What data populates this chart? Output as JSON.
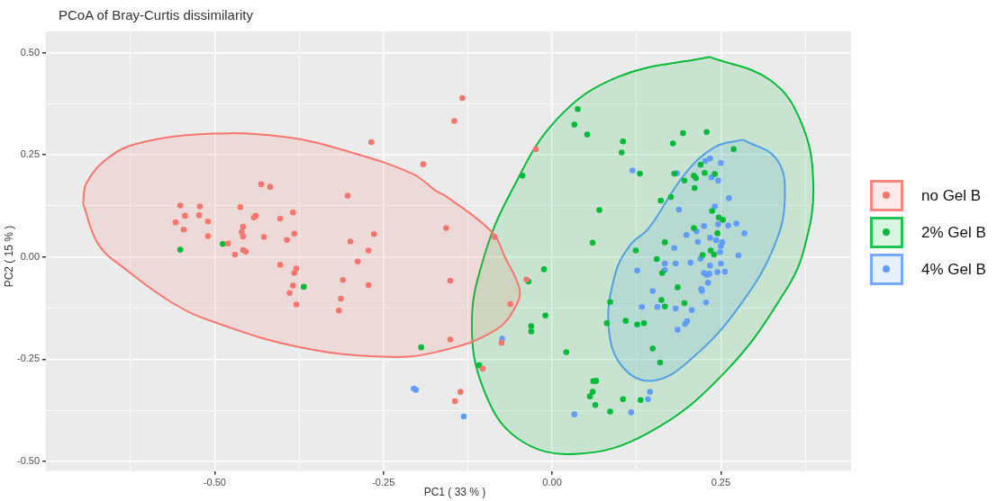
{
  "chart_data": {
    "type": "scatter",
    "title": "PCoA of Bray-Curtis dissimilarity",
    "xlabel": "PC1 ( 33 % )",
    "ylabel": "PC2 ( 15 % )",
    "xlim": [
      -0.75,
      0.443
    ],
    "ylim": [
      -0.524,
      0.552
    ],
    "xticks": [
      {
        "value": -0.625,
        "label": null
      },
      {
        "value": -0.5,
        "label": "-0.50"
      },
      {
        "value": -0.375,
        "label": null
      },
      {
        "value": -0.25,
        "label": "-0.25"
      },
      {
        "value": -0.125,
        "label": null
      },
      {
        "value": 0,
        "label": "0.00"
      },
      {
        "value": 0.125,
        "label": null
      },
      {
        "value": 0.25,
        "label": "0.25"
      },
      {
        "value": 0.375,
        "label": null
      }
    ],
    "yticks": [
      {
        "value": -0.5,
        "label": "-0.50"
      },
      {
        "value": -0.375,
        "label": null
      },
      {
        "value": -0.25,
        "label": "-0.25"
      },
      {
        "value": -0.125,
        "label": null
      },
      {
        "value": 0,
        "label": "0.00"
      },
      {
        "value": 0.125,
        "label": null
      },
      {
        "value": 0.25,
        "label": "0.25"
      },
      {
        "value": 0.375,
        "label": null
      },
      {
        "value": 0.5,
        "label": "0.50"
      }
    ],
    "grid": true,
    "legend": "right",
    "marker": "circle",
    "series": [
      {
        "type": "area",
        "marker": "none",
        "color": "#f8766d",
        "x": [
          -0.695,
          -0.69,
          -0.659,
          -0.614,
          -0.501,
          -0.388,
          -0.298,
          -0.207,
          -0.173,
          -0.153,
          -0.088,
          -0.07,
          -0.049,
          -0.051,
          -0.083,
          -0.173,
          -0.252,
          -0.379,
          -0.501,
          -0.56,
          -0.632,
          -0.672,
          -0.695
        ],
        "values": [
          0.13,
          0.181,
          0.241,
          0.278,
          0.302,
          0.292,
          0.256,
          0.204,
          0.163,
          0.144,
          0.059,
          0.0,
          -0.074,
          -0.111,
          -0.178,
          -0.233,
          -0.244,
          -0.219,
          -0.159,
          -0.115,
          -0.03,
          0.03,
          0.13
        ]
      },
      {
        "type": "area",
        "marker": "none",
        "color": "#00ba38",
        "x": [
          0.233,
          0.323,
          0.369,
          0.387,
          0.375,
          0.346,
          0.256,
          0.143,
          0.034,
          -0.051,
          -0.101,
          -0.119,
          -0.101,
          -0.061,
          0.007,
          0.098,
          0.233
        ],
        "values": [
          0.49,
          0.433,
          0.33,
          0.181,
          0.03,
          -0.082,
          -0.282,
          -0.43,
          -0.482,
          -0.444,
          -0.326,
          -0.163,
          0.0,
          0.159,
          0.337,
          0.441,
          0.49
        ]
      },
      {
        "type": "area",
        "marker": "none",
        "color": "#619cff",
        "x": [
          0.283,
          0.332,
          0.345,
          0.33,
          0.278,
          0.21,
          0.152,
          0.107,
          0.084,
          0.093,
          0.116,
          0.143,
          0.197,
          0.242,
          0.283
        ],
        "values": [
          0.287,
          0.241,
          0.152,
          0.03,
          -0.119,
          -0.244,
          -0.302,
          -0.274,
          -0.178,
          -0.044,
          0.03,
          0.07,
          0.204,
          0.27,
          0.287
        ]
      },
      {
        "name": "no Gel B",
        "color": "#f8766d",
        "x": [
          -0.268,
          -0.191,
          -0.431,
          -0.418,
          -0.303,
          -0.551,
          -0.522,
          -0.462,
          -0.544,
          -0.523,
          -0.51,
          -0.558,
          -0.439,
          -0.442,
          -0.384,
          -0.403,
          -0.458,
          -0.546,
          -0.46,
          -0.458,
          -0.51,
          -0.427,
          -0.382,
          -0.393,
          -0.264,
          -0.299,
          -0.157,
          -0.48,
          -0.272,
          -0.458,
          -0.454,
          -0.47,
          -0.403,
          -0.379,
          -0.382,
          -0.288,
          -0.31,
          -0.272,
          -0.384,
          -0.389,
          -0.313,
          -0.379,
          -0.316,
          -0.151,
          -0.151,
          -0.133,
          -0.145,
          -0.024,
          -0.085,
          -0.038,
          -0.062,
          -0.075,
          -0.103,
          -0.136,
          -0.144
        ],
        "values": [
          0.281,
          0.227,
          0.178,
          0.172,
          0.15,
          0.126,
          0.124,
          0.122,
          0.101,
          0.102,
          0.087,
          0.085,
          0.101,
          0.097,
          0.109,
          0.094,
          0.074,
          0.067,
          0.061,
          0.05,
          0.051,
          0.049,
          0.057,
          0.042,
          0.056,
          0.038,
          0.071,
          0.033,
          0.016,
          0.017,
          0.013,
          0.006,
          -0.019,
          -0.028,
          -0.039,
          -0.011,
          -0.056,
          -0.069,
          -0.07,
          -0.088,
          -0.102,
          -0.116,
          -0.131,
          -0.058,
          -0.202,
          0.389,
          0.333,
          0.264,
          0.049,
          -0.055,
          -0.115,
          -0.21,
          -0.273,
          -0.33,
          -0.353
        ]
      },
      {
        "name": "2% Gel B",
        "color": "#00ba38",
        "x": [
          -0.551,
          -0.488,
          -0.368,
          -0.194,
          0.038,
          0.033,
          0.052,
          0.105,
          0.103,
          0.194,
          0.229,
          0.179,
          0.269,
          -0.044,
          0.13,
          0.181,
          0.22,
          0.226,
          0.241,
          0.21,
          0.213,
          0.196,
          0.211,
          0.161,
          0.176,
          0.07,
          0.237,
          0.247,
          0.253,
          0.21,
          0.245,
          0.06,
          0.167,
          0.124,
          0.235,
          0.24,
          0.223,
          0.155,
          -0.012,
          -0.035,
          -0.01,
          -0.031,
          -0.031,
          0.021,
          -0.108,
          0.086,
          0.081,
          0.109,
          0.126,
          0.136,
          0.163,
          0.186,
          0.162,
          0.167,
          0.196,
          0.149,
          0.16,
          0.061,
          0.065,
          0.06,
          0.056,
          0.064,
          0.086,
          0.105,
          0.131
        ],
        "values": [
          0.018,
          0.032,
          -0.073,
          -0.221,
          0.362,
          0.324,
          0.3,
          0.283,
          0.256,
          0.303,
          0.306,
          0.278,
          0.264,
          0.199,
          0.204,
          0.204,
          0.226,
          0.206,
          0.203,
          0.199,
          0.193,
          0.187,
          0.169,
          0.138,
          0.147,
          0.115,
          0.113,
          0.097,
          0.091,
          0.071,
          0.058,
          0.035,
          0.036,
          0.016,
          0.016,
          0.006,
          0.005,
          -0.005,
          -0.03,
          -0.06,
          -0.143,
          -0.169,
          -0.182,
          -0.233,
          -0.265,
          -0.11,
          -0.162,
          -0.156,
          -0.165,
          -0.162,
          -0.039,
          -0.074,
          -0.105,
          -0.121,
          -0.113,
          -0.224,
          -0.258,
          -0.304,
          -0.303,
          -0.33,
          -0.341,
          -0.362,
          -0.378,
          -0.348,
          -0.35
        ]
      },
      {
        "name": "4% Gel B",
        "color": "#619cff",
        "x": [
          -0.205,
          -0.202,
          0.119,
          0.227,
          0.234,
          0.25,
          0.236,
          0.246,
          0.185,
          0.262,
          0.241,
          0.188,
          0.246,
          0.261,
          0.273,
          0.225,
          0.214,
          0.285,
          0.199,
          0.216,
          0.234,
          0.243,
          0.252,
          0.25,
          0.181,
          0.249,
          0.276,
          0.167,
          0.183,
          0.205,
          0.22,
          0.234,
          0.25,
          0.245,
          0.256,
          0.225,
          0.229,
          0.233,
          0.167,
          0.126,
          0.231,
          0.149,
          0.221,
          0.222,
          0.228,
          0.133,
          0.156,
          0.183,
          0.207,
          0.2,
          0.197,
          0.186,
          -0.074,
          0.145,
          0.142,
          0.117,
          0.033,
          -0.131
        ],
        "values": [
          -0.322,
          -0.325,
          0.212,
          0.235,
          0.241,
          0.23,
          0.195,
          0.187,
          0.205,
          0.144,
          0.124,
          0.116,
          0.08,
          0.077,
          0.082,
          0.076,
          0.063,
          0.058,
          0.054,
          0.037,
          0.047,
          0.041,
          0.036,
          0.027,
          0.022,
          0.012,
          0.004,
          -0.016,
          -0.016,
          -0.014,
          -0.004,
          -0.021,
          -0.016,
          -0.037,
          -0.036,
          -0.039,
          -0.044,
          -0.041,
          -0.032,
          -0.033,
          -0.063,
          -0.083,
          -0.078,
          -0.083,
          -0.111,
          -0.122,
          -0.122,
          -0.126,
          -0.13,
          -0.157,
          -0.164,
          -0.178,
          -0.2,
          -0.33,
          -0.348,
          -0.38,
          -0.385,
          -0.39
        ]
      }
    ]
  }
}
